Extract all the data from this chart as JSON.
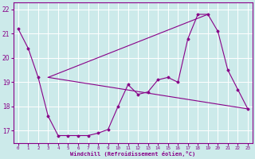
{
  "xlabel": "Windchill (Refroidissement éolien,°C)",
  "background_color": "#cceaea",
  "grid_color": "#ffffff",
  "line_color": "#880088",
  "ylim": [
    16.5,
    22.3
  ],
  "xlim": [
    -0.5,
    23.5
  ],
  "yticks": [
    17,
    18,
    19,
    20,
    21,
    22
  ],
  "xticks": [
    0,
    1,
    2,
    3,
    4,
    5,
    6,
    7,
    8,
    9,
    10,
    11,
    12,
    13,
    14,
    15,
    16,
    17,
    18,
    19,
    20,
    21,
    22,
    23
  ],
  "curve1_x": [
    0,
    1,
    2,
    3,
    4,
    5,
    6,
    7,
    8,
    9,
    10,
    11,
    12,
    13,
    14,
    15,
    16,
    17,
    18,
    19,
    20,
    21,
    22,
    23
  ],
  "curve1_y": [
    21.2,
    20.4,
    19.2,
    17.6,
    16.8,
    16.8,
    16.8,
    16.8,
    16.9,
    17.05,
    18.0,
    18.9,
    18.5,
    18.6,
    19.1,
    19.2,
    19.0,
    20.8,
    21.8,
    21.8,
    21.1,
    19.5,
    18.7,
    17.9
  ],
  "line1_x": [
    3,
    23
  ],
  "line1_y": [
    19.2,
    17.9
  ],
  "line2_x": [
    3,
    19
  ],
  "line2_y": [
    19.2,
    21.8
  ]
}
